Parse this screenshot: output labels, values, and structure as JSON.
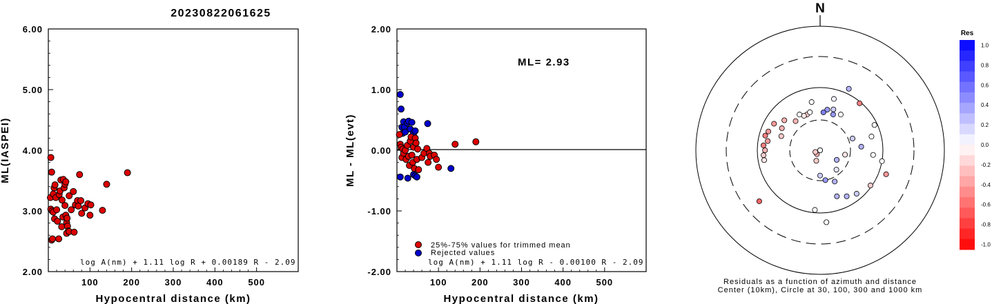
{
  "title": "20230822061625",
  "chart_data": [
    {
      "type": "scatter",
      "xlabel": "Hypocentral distance (km)",
      "ylabel": "ML(IASPEI)",
      "xlim": [
        0,
        600
      ],
      "ylim": [
        2.0,
        6.0
      ],
      "x_ticks": [
        "100",
        "200",
        "300",
        "400",
        "500"
      ],
      "y_ticks": [
        "2.00",
        "3.00",
        "4.00",
        "5.00",
        "6.00"
      ],
      "formula": "log A(nm) + 1.11 log R + 0.00189 R - 2.09",
      "color": "#dd0000",
      "points": [
        [
          6,
          3.88
        ],
        [
          8,
          3.64
        ],
        [
          5,
          3.22
        ],
        [
          6,
          3.03
        ],
        [
          8,
          2.52
        ],
        [
          10,
          2.54
        ],
        [
          9,
          3.0
        ],
        [
          12,
          2.98
        ],
        [
          14,
          3.38
        ],
        [
          16,
          3.43
        ],
        [
          12,
          3.28
        ],
        [
          18,
          3.22
        ],
        [
          15,
          2.87
        ],
        [
          22,
          2.83
        ],
        [
          25,
          2.54
        ],
        [
          20,
          3.02
        ],
        [
          26,
          3.27
        ],
        [
          28,
          3.33
        ],
        [
          30,
          3.51
        ],
        [
          33,
          3.18
        ],
        [
          32,
          2.74
        ],
        [
          35,
          2.9
        ],
        [
          36,
          3.52
        ],
        [
          38,
          3.38
        ],
        [
          40,
          3.44
        ],
        [
          42,
          3.48
        ],
        [
          40,
          3.09
        ],
        [
          42,
          2.93
        ],
        [
          44,
          2.81
        ],
        [
          45,
          2.88
        ],
        [
          46,
          2.75
        ],
        [
          48,
          2.67
        ],
        [
          44,
          2.63
        ],
        [
          50,
          2.66
        ],
        [
          50,
          3.25
        ],
        [
          55,
          3.02
        ],
        [
          60,
          3.32
        ],
        [
          62,
          2.65
        ],
        [
          65,
          3.1
        ],
        [
          70,
          3.17
        ],
        [
          72,
          3.08
        ],
        [
          75,
          3.6
        ],
        [
          78,
          3.17
        ],
        [
          80,
          2.96
        ],
        [
          88,
          3.05
        ],
        [
          95,
          3.12
        ],
        [
          100,
          2.93
        ],
        [
          102,
          3.1
        ],
        [
          130,
          3.01
        ],
        [
          140,
          3.44
        ],
        [
          190,
          3.63
        ]
      ]
    },
    {
      "type": "scatter",
      "xlabel": "Hypocentral distance (km)",
      "ylabel": "ML - ML(evt)",
      "xlim": [
        0,
        600
      ],
      "ylim": [
        -2.0,
        2.0
      ],
      "x_ticks": [
        "100",
        "200",
        "300",
        "400",
        "500"
      ],
      "y_ticks": [
        "-2.00",
        "-1.00",
        "0.00",
        "1.00",
        "2.00"
      ],
      "ml_label": "ML= 2.93",
      "formula": "log A(nm) + 1.11 log R - 0.00100 R - 2.09",
      "legend": [
        {
          "label": "25%-75% values for trimmed mean",
          "color": "#dd0000"
        },
        {
          "label": "Rejected values",
          "color": "#0000cc"
        }
      ],
      "trimmed": [
        [
          6,
          0.26
        ],
        [
          8,
          0.1
        ],
        [
          10,
          0.05
        ],
        [
          12,
          -0.12
        ],
        [
          14,
          0.02
        ],
        [
          16,
          -0.05
        ],
        [
          20,
          0.0
        ],
        [
          22,
          -0.15
        ],
        [
          25,
          0.08
        ],
        [
          28,
          -0.1
        ],
        [
          30,
          -0.25
        ],
        [
          32,
          0.15
        ],
        [
          34,
          0.22
        ],
        [
          36,
          -0.08
        ],
        [
          38,
          -0.2
        ],
        [
          40,
          0.05
        ],
        [
          42,
          -0.3
        ],
        [
          44,
          0.2
        ],
        [
          46,
          0.12
        ],
        [
          48,
          -0.15
        ],
        [
          50,
          0.02
        ],
        [
          52,
          -0.32
        ],
        [
          60,
          -0.12
        ],
        [
          65,
          -0.05
        ],
        [
          72,
          0.03
        ],
        [
          75,
          -0.2
        ],
        [
          78,
          -0.05
        ],
        [
          80,
          -0.1
        ],
        [
          90,
          -0.08
        ],
        [
          95,
          -0.15
        ],
        [
          100,
          -0.28
        ],
        [
          140,
          0.1
        ],
        [
          190,
          0.14
        ]
      ],
      "rejected": [
        [
          8,
          0.92
        ],
        [
          10,
          0.68
        ],
        [
          12,
          0.38
        ],
        [
          14,
          0.28
        ],
        [
          16,
          0.47
        ],
        [
          18,
          0.38
        ],
        [
          20,
          0.3
        ],
        [
          25,
          0.45
        ],
        [
          28,
          0.48
        ],
        [
          32,
          0.35
        ],
        [
          36,
          0.46
        ],
        [
          40,
          0.28
        ],
        [
          44,
          0.32
        ],
        [
          74,
          0.44
        ],
        [
          8,
          -0.44
        ],
        [
          26,
          -0.46
        ],
        [
          40,
          -0.4
        ],
        [
          44,
          -0.42
        ],
        [
          48,
          -0.44
        ],
        [
          130,
          -0.3
        ]
      ]
    },
    {
      "type": "polar-scatter",
      "north_label": "N",
      "caption_line1": "Residuals as a function of azimuth and distance",
      "caption_line2": "Center (10km), Circle at 30, 100, 300 and 1000 km",
      "colorbar_title": "Res",
      "colorbar_ticks": [
        "1.0",
        "0.8",
        "0.6",
        "0.4",
        "0.2",
        "0.0",
        "-0.2",
        "-0.4",
        "-0.6",
        "-0.8",
        "-1.0"
      ],
      "rings_km": [
        30,
        100,
        300,
        1000
      ],
      "stations": [
        {
          "az": 350,
          "dist": 60,
          "res": 0.0
        },
        {
          "az": 40,
          "dist": 95,
          "res": -0.5
        },
        {
          "az": 25,
          "dist": 120,
          "res": 0.3
        },
        {
          "az": 15,
          "dist": 70,
          "res": 0.05
        },
        {
          "az": 10,
          "dist": 45,
          "res": 0.4
        },
        {
          "az": 5,
          "dist": 40,
          "res": 0.5
        },
        {
          "az": 20,
          "dist": 40,
          "res": 0.4
        },
        {
          "az": 18,
          "dist": 48,
          "res": 0.2
        },
        {
          "az": 30,
          "dist": 45,
          "res": 0.0
        },
        {
          "az": 340,
          "dist": 40,
          "res": -0.2
        },
        {
          "az": 345,
          "dist": 42,
          "res": 0.0
        },
        {
          "az": 320,
          "dist": 40,
          "res": -0.3
        },
        {
          "az": 330,
          "dist": 45,
          "res": 0.0
        },
        {
          "az": 335,
          "dist": 40,
          "res": -0.1
        },
        {
          "az": 300,
          "dist": 70,
          "res": -0.4
        },
        {
          "az": 290,
          "dist": 75,
          "res": -0.4
        },
        {
          "az": 285,
          "dist": 80,
          "res": -0.5
        },
        {
          "az": 280,
          "dist": 70,
          "res": -0.4
        },
        {
          "az": 275,
          "dist": 80,
          "res": -0.5
        },
        {
          "az": 270,
          "dist": 75,
          "res": -0.3
        },
        {
          "az": 265,
          "dist": 80,
          "res": -0.2
        },
        {
          "az": 260,
          "dist": 80,
          "res": -0.1
        },
        {
          "az": 300,
          "dist": 50,
          "res": -0.3
        },
        {
          "az": 310,
          "dist": 55,
          "res": -0.3
        },
        {
          "az": 290,
          "dist": 45,
          "res": -0.2
        },
        {
          "az": 230,
          "dist": 180,
          "res": -0.6
        },
        {
          "az": 185,
          "dist": 90,
          "res": 0.0
        },
        {
          "az": 175,
          "dist": 140,
          "res": 0.0
        },
        {
          "az": 160,
          "dist": 60,
          "res": 0.3
        },
        {
          "az": 150,
          "dist": 70,
          "res": 0.3
        },
        {
          "az": 140,
          "dist": 80,
          "res": 0.2
        },
        {
          "az": 125,
          "dist": 95,
          "res": -0.2
        },
        {
          "az": 110,
          "dist": 130,
          "res": -0.4
        },
        {
          "az": 100,
          "dist": 100,
          "res": 0.0
        },
        {
          "az": 95,
          "dist": 70,
          "res": 0.0
        },
        {
          "az": 85,
          "dist": 45,
          "res": 0.3
        },
        {
          "az": 75,
          "dist": 70,
          "res": 0.0
        },
        {
          "az": 65,
          "dist": 90,
          "res": 0.0
        },
        {
          "az": 155,
          "dist": 35,
          "res": 0.3
        },
        {
          "az": 170,
          "dist": 30,
          "res": 0.4
        },
        {
          "az": 180,
          "dist": 25,
          "res": 0.2
        },
        {
          "az": 140,
          "dist": 25,
          "res": 0.1
        },
        {
          "az": 120,
          "dist": 20,
          "res": 0.3
        },
        {
          "az": 200,
          "dist": 15,
          "res": -0.2
        },
        {
          "az": 220,
          "dist": 12,
          "res": -0.3
        },
        {
          "az": 250,
          "dist": 12,
          "res": -0.2
        },
        {
          "az": 80,
          "dist": 10,
          "res": 0.2
        },
        {
          "az": 10,
          "dist": 10,
          "res": 0.0
        },
        {
          "az": 100,
          "dist": 25,
          "res": -0.1
        },
        {
          "az": 70,
          "dist": 35,
          "res": 0.2
        }
      ]
    }
  ]
}
